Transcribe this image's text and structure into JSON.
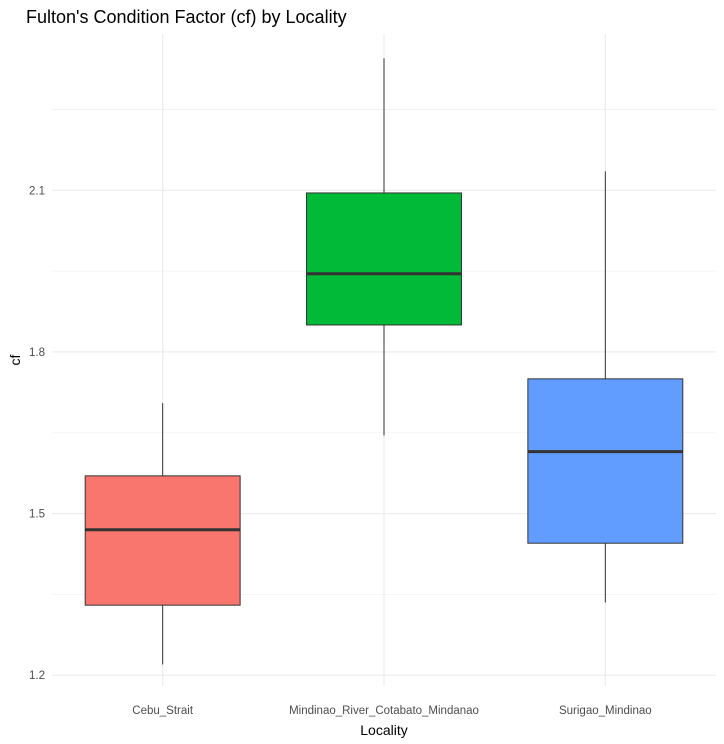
{
  "chart_data": {
    "type": "boxplot",
    "title": "Fulton's Condition Factor (cf) by Locality",
    "xlabel": "Locality",
    "ylabel": "cf",
    "categories": [
      "Cebu_Strait",
      "Mindinao_River_Cotabato_Mindanao",
      "Surigao_Mindinao"
    ],
    "yticks": [
      1.2,
      1.5,
      1.8,
      2.1
    ],
    "ylim": [
      1.18,
      2.39
    ],
    "grid": true,
    "legend": "none",
    "boxes": [
      {
        "category": "Cebu_Strait",
        "whisker_low": 1.22,
        "q1": 1.33,
        "median": 1.47,
        "q3": 1.57,
        "whisker_high": 1.705,
        "color": "#F8766D"
      },
      {
        "category": "Mindinao_River_Cotabato_Mindanao",
        "whisker_low": 1.645,
        "q1": 1.85,
        "median": 1.945,
        "q3": 2.095,
        "whisker_high": 2.345,
        "color": "#00BA38"
      },
      {
        "category": "Surigao_Mindinao",
        "whisker_low": 1.335,
        "q1": 1.445,
        "median": 1.615,
        "q3": 1.75,
        "whisker_high": 2.135,
        "color": "#619CFF"
      }
    ]
  }
}
